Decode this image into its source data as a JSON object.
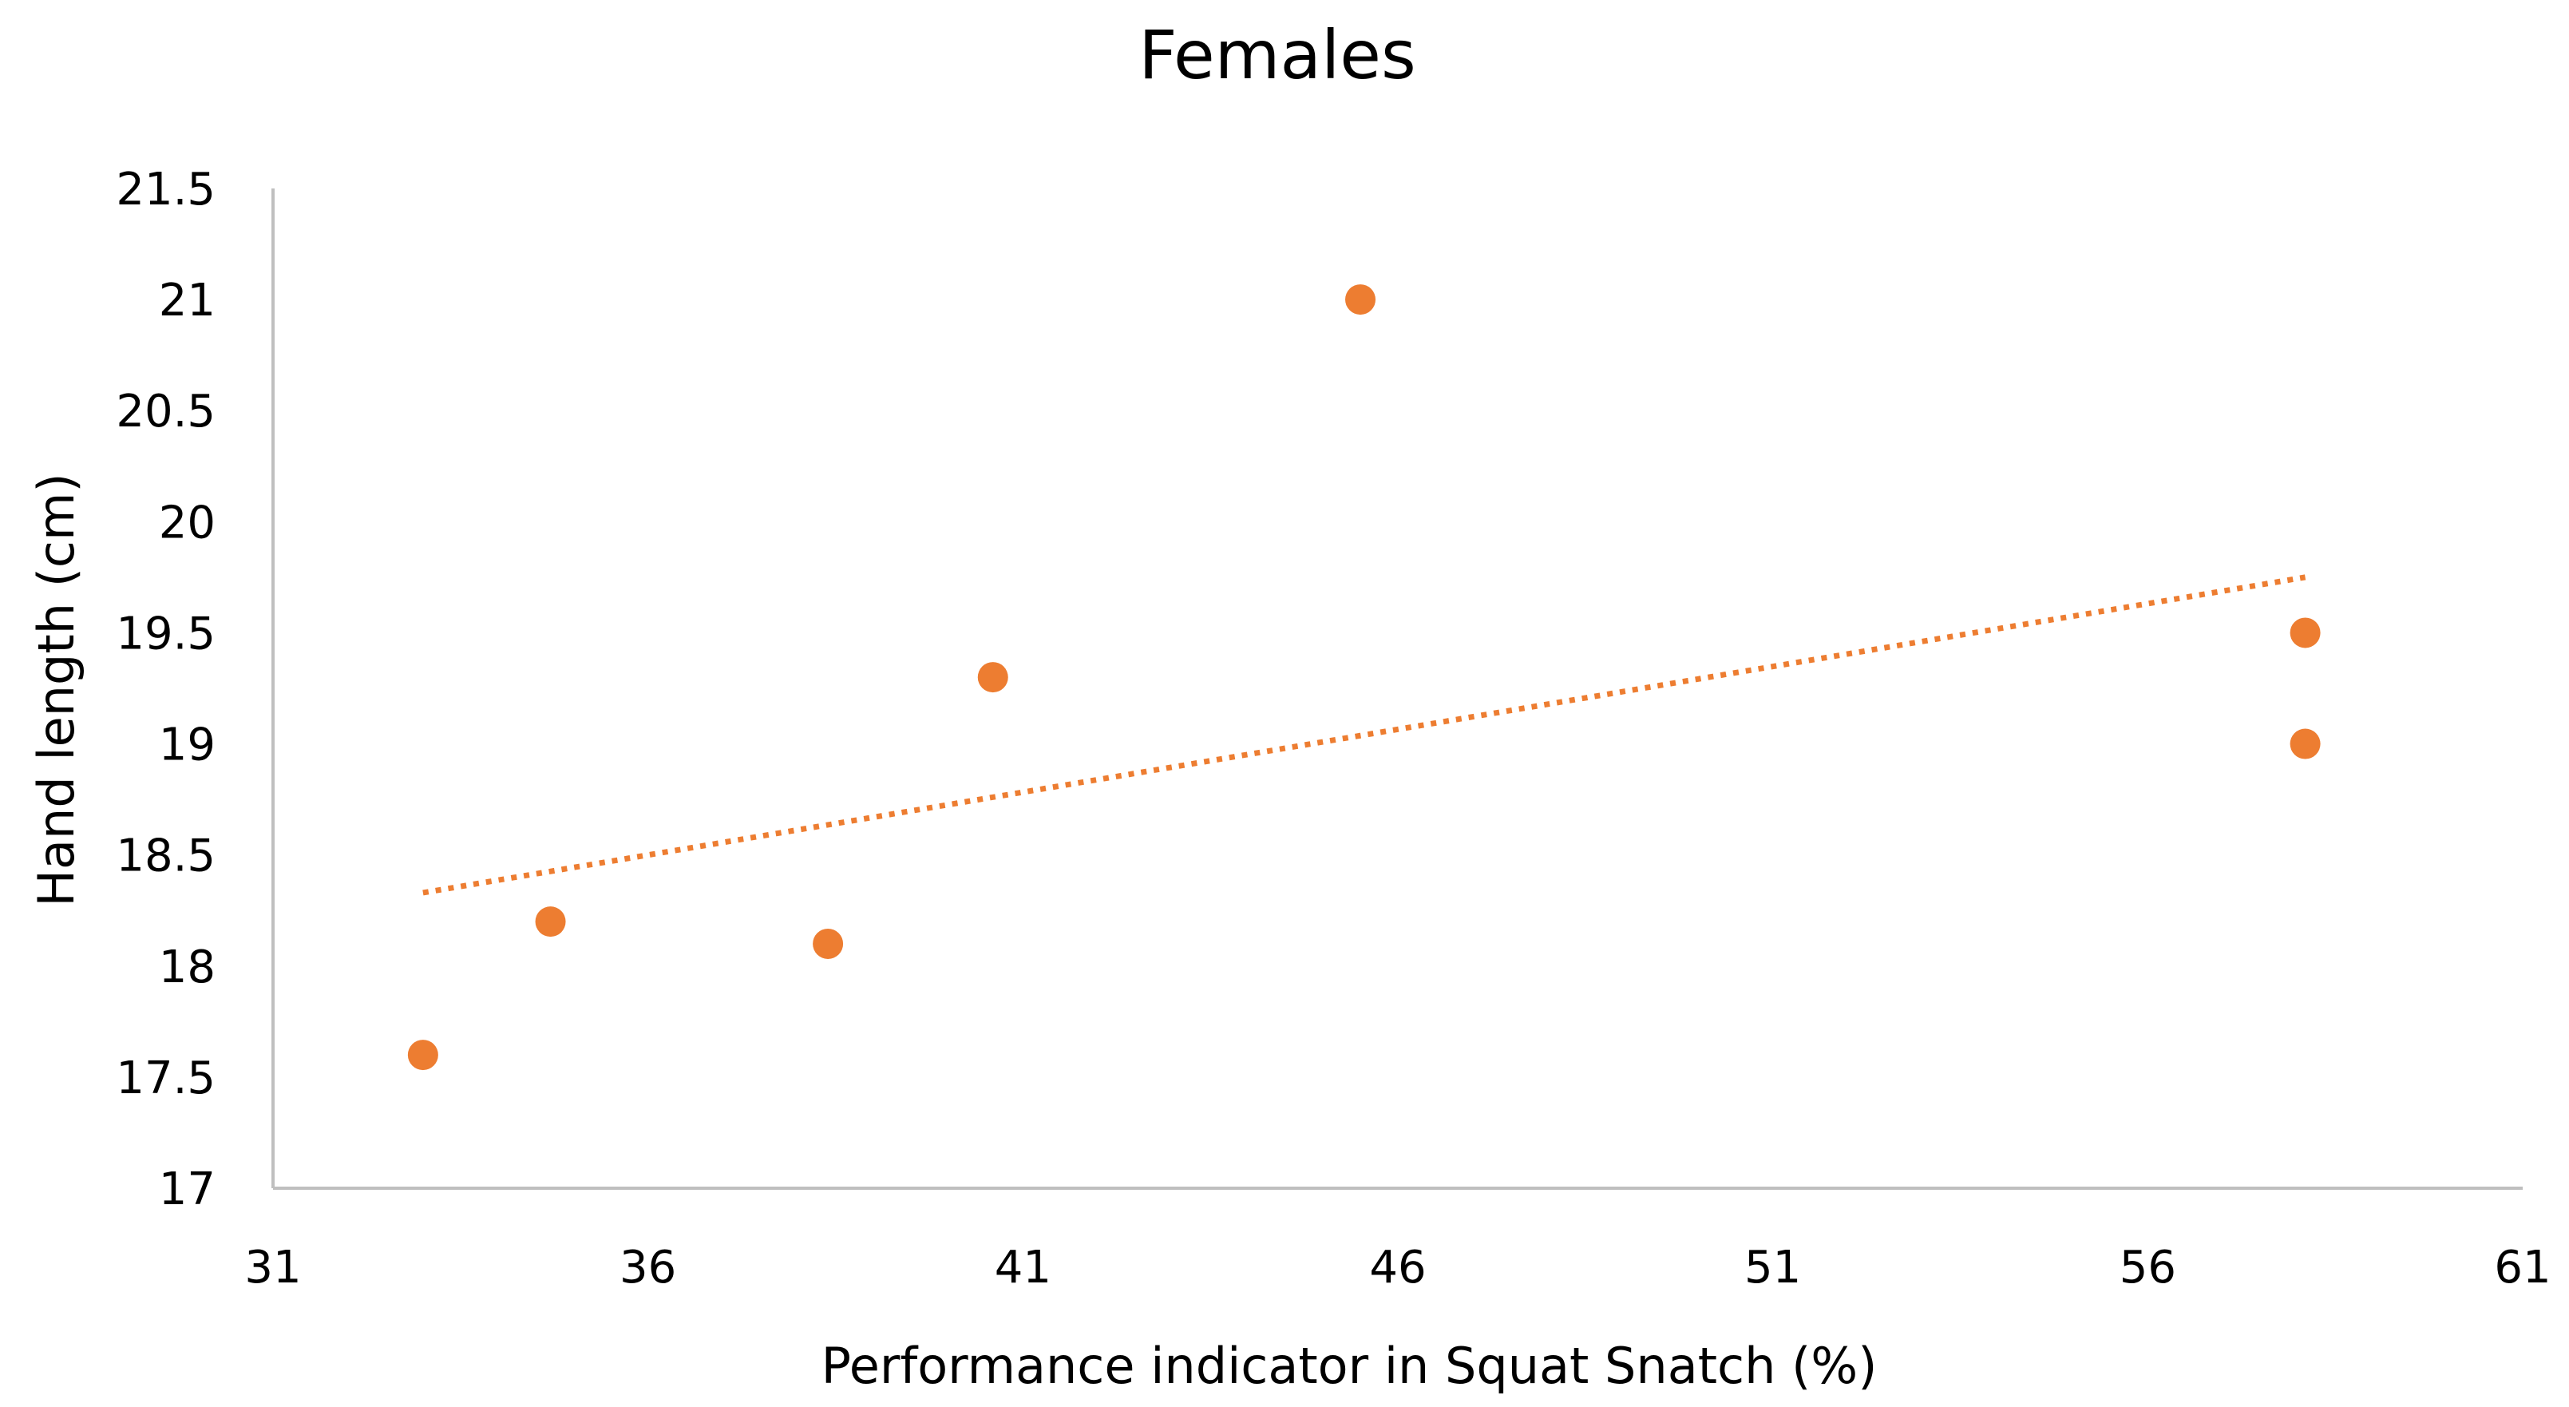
{
  "chart_data": {
    "type": "scatter",
    "title": "Females",
    "xlabel": "Performance indicator in Squat Snatch (%)",
    "ylabel": "Hand length (cm)",
    "xlim": [
      31,
      61
    ],
    "ylim": [
      17,
      21.5
    ],
    "x_ticks": [
      31,
      36,
      41,
      46,
      51,
      56,
      61
    ],
    "y_ticks": [
      17,
      17.5,
      18,
      18.5,
      19,
      19.5,
      20,
      20.5,
      21,
      21.5
    ],
    "grid": false,
    "series": [
      {
        "name": "Females",
        "color": "#ED7D31",
        "points": [
          {
            "x": 33.0,
            "y": 17.6
          },
          {
            "x": 34.7,
            "y": 18.2
          },
          {
            "x": 38.4,
            "y": 18.1
          },
          {
            "x": 40.6,
            "y": 19.3
          },
          {
            "x": 45.5,
            "y": 21.0
          },
          {
            "x": 58.1,
            "y": 19.5
          },
          {
            "x": 58.1,
            "y": 19.0
          }
        ]
      }
    ],
    "trendline": {
      "type": "linear",
      "style": "dotted",
      "color": "#ED7D31",
      "x_start": 33.0,
      "y_start": 18.33,
      "x_end": 58.1,
      "y_end": 19.75
    }
  }
}
